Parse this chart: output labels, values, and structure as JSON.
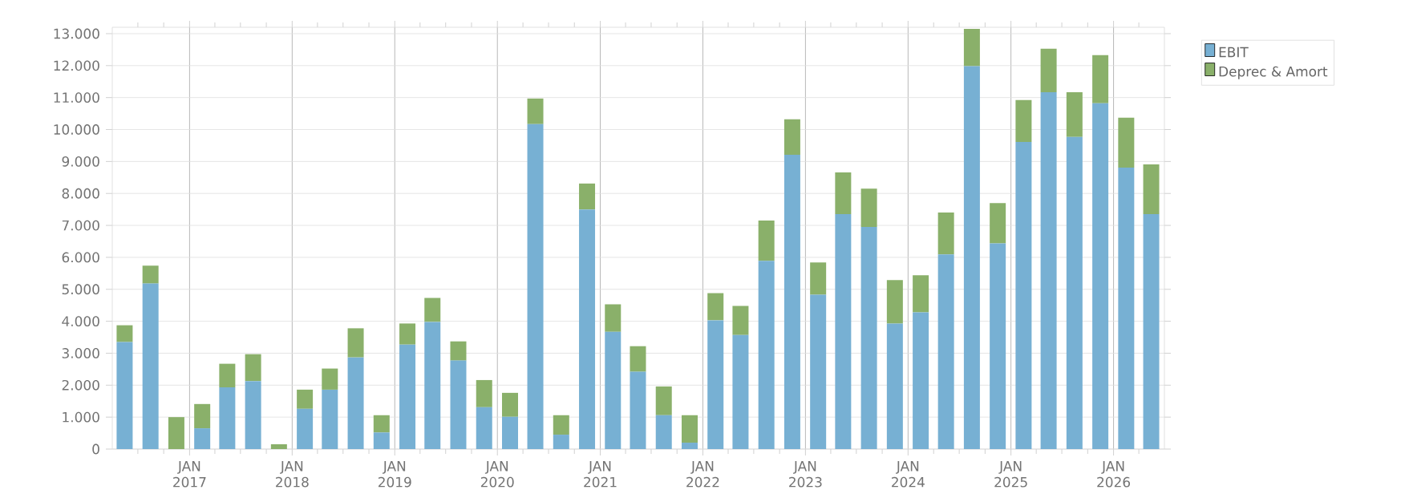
{
  "chart_data": {
    "type": "bar",
    "stacked": true,
    "x": [
      "2016-05-15",
      "2016-08-15",
      "2016-11-15",
      "2017-02-15",
      "2017-05-15",
      "2017-08-15",
      "2017-11-15",
      "2018-02-15",
      "2018-05-15",
      "2018-08-15",
      "2018-11-15",
      "2019-02-15",
      "2019-05-15",
      "2019-08-15",
      "2019-11-15",
      "2020-02-15",
      "2020-05-15",
      "2020-08-15",
      "2020-11-15",
      "2021-02-15",
      "2021-05-15",
      "2021-08-15",
      "2021-11-15",
      "2022-02-15",
      "2022-05-15",
      "2022-08-15",
      "2022-11-15",
      "2023-02-15",
      "2023-05-15",
      "2023-08-15",
      "2023-11-15",
      "2024-02-15",
      "2024-05-15",
      "2024-08-15",
      "2024-11-15",
      "2025-02-15",
      "2025-05-15",
      "2025-08-15",
      "2025-11-15",
      "2026-02-15",
      "2026-05-15"
    ],
    "series": [
      {
        "name": "EBIT",
        "color": "#77b0d3",
        "values": [
          3350,
          5180,
          0,
          650,
          1930,
          2130,
          0,
          1260,
          1860,
          2870,
          520,
          3270,
          3980,
          2770,
          1310,
          1010,
          10170,
          450,
          7500,
          3670,
          2420,
          1060,
          200,
          4030,
          3570,
          5890,
          9210,
          4830,
          7350,
          6950,
          3930,
          4280,
          6090,
          11980,
          6440,
          9610,
          11170,
          9770,
          10820,
          8810,
          7350
        ]
      },
      {
        "name": "Deprec & Amort",
        "color": "#8ab06a",
        "values": [
          525,
          560,
          1000,
          760,
          740,
          840,
          150,
          600,
          660,
          910,
          540,
          660,
          750,
          600,
          850,
          750,
          800,
          610,
          810,
          860,
          800,
          900,
          860,
          850,
          910,
          1260,
          1110,
          1010,
          1310,
          1200,
          1360,
          1160,
          1310,
          1170,
          1260,
          1310,
          1360,
          1400,
          1510,
          1560,
          1560
        ]
      }
    ],
    "xlim": [
      "2016-04-01",
      "2026-07-01"
    ],
    "xticks": [
      {
        "value": "2016-07-01",
        "label": null
      },
      {
        "value": "2016-10-01",
        "label": null
      },
      {
        "value": "2017-01-01",
        "label": "JAN 2017"
      },
      {
        "value": "2017-04-01",
        "label": null
      },
      {
        "value": "2017-07-01",
        "label": null
      },
      {
        "value": "2017-10-01",
        "label": null
      },
      {
        "value": "2018-01-01",
        "label": "JAN 2018"
      },
      {
        "value": "2018-04-01",
        "label": null
      },
      {
        "value": "2018-07-01",
        "label": null
      },
      {
        "value": "2018-10-01",
        "label": null
      },
      {
        "value": "2019-01-01",
        "label": "JAN 2019"
      },
      {
        "value": "2019-04-01",
        "label": null
      },
      {
        "value": "2019-07-01",
        "label": null
      },
      {
        "value": "2019-10-01",
        "label": null
      },
      {
        "value": "2020-01-01",
        "label": "JAN 2020"
      },
      {
        "value": "2020-04-01",
        "label": null
      },
      {
        "value": "2020-07-01",
        "label": null
      },
      {
        "value": "2020-10-01",
        "label": null
      },
      {
        "value": "2021-01-01",
        "label": "JAN 2021"
      },
      {
        "value": "2021-04-01",
        "label": null
      },
      {
        "value": "2021-07-01",
        "label": null
      },
      {
        "value": "2021-10-01",
        "label": null
      },
      {
        "value": "2022-01-01",
        "label": "JAN 2022"
      },
      {
        "value": "2022-04-01",
        "label": null
      },
      {
        "value": "2022-07-01",
        "label": null
      },
      {
        "value": "2022-10-01",
        "label": null
      },
      {
        "value": "2023-01-01",
        "label": "JAN 2023"
      },
      {
        "value": "2023-04-01",
        "label": null
      },
      {
        "value": "2023-07-01",
        "label": null
      },
      {
        "value": "2023-10-01",
        "label": null
      },
      {
        "value": "2024-01-01",
        "label": "JAN 2024"
      },
      {
        "value": "2024-04-01",
        "label": null
      },
      {
        "value": "2024-07-01",
        "label": null
      },
      {
        "value": "2024-10-01",
        "label": null
      },
      {
        "value": "2025-01-01",
        "label": "JAN 2025"
      },
      {
        "value": "2025-04-01",
        "label": null
      },
      {
        "value": "2025-07-01",
        "label": null
      },
      {
        "value": "2025-10-01",
        "label": null
      },
      {
        "value": "2026-01-01",
        "label": "JAN 2026"
      },
      {
        "value": "2026-04-01",
        "label": null
      }
    ],
    "ylim": [
      0,
      13200
    ],
    "yticks": [
      0,
      {
        "value": 1000,
        "label": "1.000"
      },
      {
        "value": 2000,
        "label": "2.000"
      },
      {
        "value": 3000,
        "label": "3.000"
      },
      {
        "value": 4000,
        "label": "4.000"
      },
      {
        "value": 5000,
        "label": "5.000"
      },
      {
        "value": 6000,
        "label": "6.000"
      },
      {
        "value": 7000,
        "label": "7.000"
      },
      {
        "value": 8000,
        "label": "8.000"
      },
      {
        "value": 9000,
        "label": "9.000"
      },
      {
        "value": 10000,
        "label": "10.000"
      },
      {
        "value": 11000,
        "label": "11.000"
      },
      {
        "value": 12000,
        "label": "12.000"
      },
      {
        "value": 13000,
        "label": "13.000"
      }
    ],
    "grid": true,
    "legend": "top right"
  }
}
